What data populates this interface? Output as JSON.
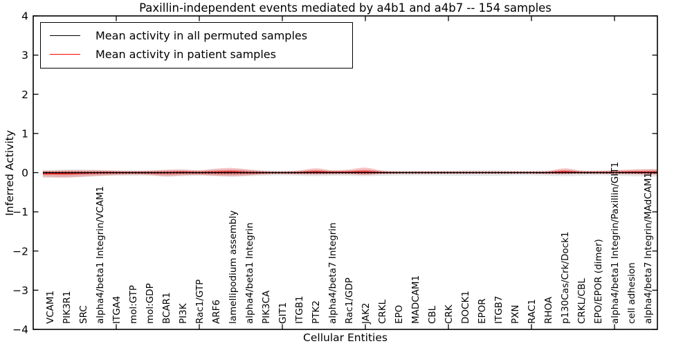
{
  "figure": {
    "title": "Paxillin-independent events mediated by a4b1 and a4b7 -- 154 samples",
    "xlabel": "Cellular Entities",
    "ylabel": "Inferred Activity"
  },
  "legend": {
    "items": [
      {
        "label": "Mean activity in all permuted samples",
        "color": "#000000"
      },
      {
        "label": "Mean activity in patient samples",
        "color": "#ff0000"
      }
    ]
  },
  "axes": {
    "ytick_labels": [
      "4",
      "3",
      "2",
      "1",
      "0",
      "−1",
      "−2",
      "−3",
      "−4"
    ],
    "xtick_major_values": [
      5,
      10,
      15,
      20,
      25,
      30,
      35
    ]
  },
  "chart_data": {
    "type": "line",
    "title": "Paxillin-independent events mediated by a4b1 and a4b7 -- 154 samples",
    "xlabel": "Cellular Entities",
    "ylabel": "Inferred Activity",
    "ylim": [
      -4,
      4
    ],
    "yticks": [
      4,
      3,
      2,
      1,
      0,
      -1,
      -2,
      -3,
      -4
    ],
    "grid": false,
    "legend_position": "upper left",
    "categories": [
      "VCAM1",
      "PIK3R1",
      "SRC",
      "alpha4/beta1 Integrin/VCAM1",
      "ITGA4",
      "mol:GTP",
      "mol:GDP",
      "BCAR1",
      "PI3K",
      "Rac1/GTP",
      "ARF6",
      "lamellipodium assembly",
      "alpha4/beta1 Integrin",
      "PIK3CA",
      "GIT1",
      "ITGB1",
      "PTK2",
      "alpha4/beta7 Integrin",
      "Rac1/GDP",
      "JAK2",
      "CRKL",
      "EPO",
      "MADCAM1",
      "CBL",
      "CRK",
      "DOCK1",
      "EPOR",
      "ITGB7",
      "PXN",
      "RAC1",
      "RHOA",
      "p130Cas/Crk/Dock1",
      "CRKL/CBL",
      "EPO/EPOR (dimer)",
      "alpha4/beta1 Integrin/Paxillin/GIT1",
      "cell adhesion",
      "alpha4/beta7 Integrin/MAdCAM1"
    ],
    "series": [
      {
        "name": "Mean activity in all permuted samples",
        "color": "#000000",
        "values": [
          0,
          0,
          0,
          0,
          0,
          0,
          0,
          0,
          0,
          0,
          0,
          0,
          0,
          0,
          0,
          0,
          0,
          0,
          0,
          0,
          0,
          0,
          0,
          0,
          0,
          0,
          0,
          0,
          0,
          0,
          0,
          0,
          0,
          0,
          0,
          0,
          0
        ]
      },
      {
        "name": "Mean activity in patient samples",
        "color": "#ff0000",
        "values": [
          -0.02,
          -0.02,
          -0.01,
          0,
          0,
          0,
          0,
          0,
          0.01,
          0,
          0.01,
          0.02,
          0,
          0,
          0,
          0,
          0.02,
          0.01,
          0.01,
          0.02,
          0,
          0,
          0,
          0,
          0,
          0,
          0,
          0,
          0,
          0,
          0,
          0.02,
          0,
          0,
          0,
          0.01,
          0.01
        ]
      }
    ],
    "bands": [
      {
        "name": "permuted-samples-range",
        "color": "#000000",
        "opacity": 0.1,
        "upper": [
          0.07,
          0.08,
          0.08,
          0.07,
          0.06,
          0.06,
          0.06,
          0.07,
          0.07,
          0.06,
          0.07,
          0.08,
          0.07,
          0.06,
          0.05,
          0.06,
          0.07,
          0.06,
          0.06,
          0.07,
          0.06,
          0.05,
          0.05,
          0.05,
          0.05,
          0.06,
          0.06,
          0.06,
          0.05,
          0.05,
          0.06,
          0.07,
          0.06,
          0.05,
          0.06,
          0.07,
          0.08
        ],
        "lower": [
          -0.13,
          -0.13,
          -0.11,
          -0.09,
          -0.08,
          -0.08,
          -0.08,
          -0.1,
          -0.09,
          -0.08,
          -0.09,
          -0.1,
          -0.09,
          -0.08,
          -0.07,
          -0.08,
          -0.09,
          -0.08,
          -0.08,
          -0.09,
          -0.08,
          -0.07,
          -0.07,
          -0.07,
          -0.08,
          -0.08,
          -0.08,
          -0.08,
          -0.07,
          -0.07,
          -0.08,
          -0.09,
          -0.08,
          -0.07,
          -0.08,
          -0.09,
          -0.1
        ]
      },
      {
        "name": "patient-samples-range",
        "color": "#e43c3c",
        "opacity": 0.3,
        "upper": [
          0.05,
          0.06,
          0.06,
          0.06,
          0.05,
          0.04,
          0.05,
          0.07,
          0.08,
          0.06,
          0.1,
          0.12,
          0.08,
          0.04,
          0.03,
          0.05,
          0.11,
          0.06,
          0.08,
          0.13,
          0.05,
          0.03,
          0.03,
          0.03,
          0.03,
          0.03,
          0.03,
          0.03,
          0.03,
          0.03,
          0.04,
          0.11,
          0.05,
          0.05,
          0.06,
          0.08,
          0.09
        ],
        "lower": [
          -0.11,
          -0.12,
          -0.1,
          -0.08,
          -0.06,
          -0.05,
          -0.06,
          -0.09,
          -0.07,
          -0.06,
          -0.08,
          -0.09,
          -0.07,
          -0.04,
          -0.03,
          -0.04,
          -0.05,
          -0.04,
          -0.04,
          -0.06,
          -0.03,
          -0.02,
          -0.02,
          -0.02,
          -0.02,
          -0.02,
          -0.02,
          -0.02,
          -0.02,
          -0.02,
          -0.03,
          -0.04,
          -0.02,
          -0.02,
          -0.03,
          -0.04,
          -0.05
        ]
      }
    ]
  }
}
